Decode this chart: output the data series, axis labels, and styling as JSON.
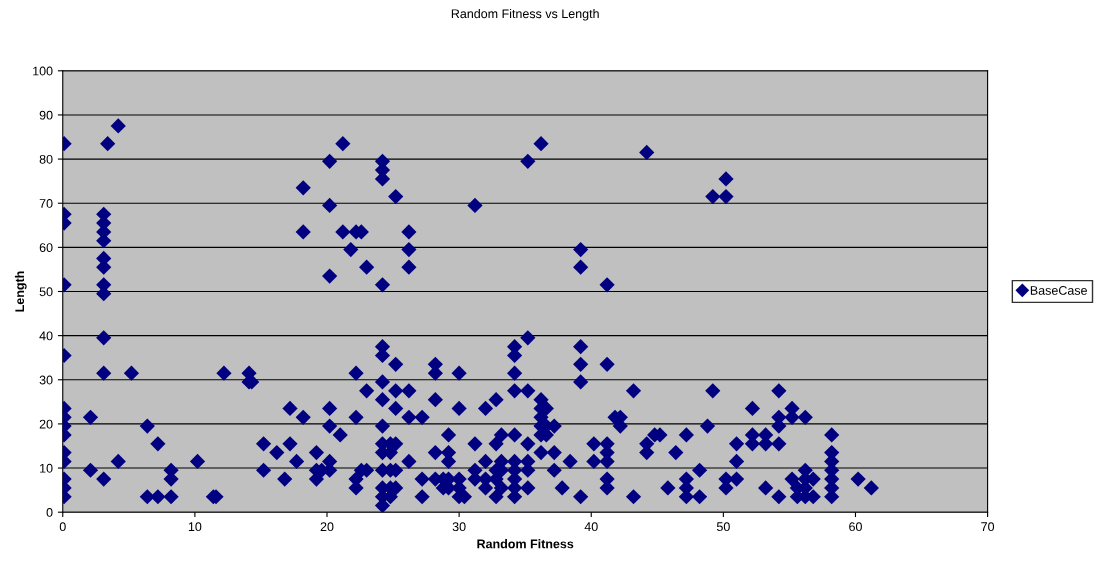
{
  "chart_data": {
    "type": "scatter",
    "title": "Random Fitness vs Length",
    "xlabel": "Random Fitness",
    "ylabel": "Length",
    "xlim": [
      0,
      70
    ],
    "xticks": [
      0,
      10,
      20,
      30,
      40,
      50,
      60,
      70
    ],
    "ylim": [
      0,
      100
    ],
    "yticks": [
      0,
      10,
      20,
      30,
      40,
      50,
      60,
      70,
      80,
      90,
      100
    ],
    "grid": "y",
    "legend": "right",
    "marker": "diamond",
    "series": [
      {
        "name": "BaseCase",
        "color": "#000080",
        "x": [
          0.1,
          0.1,
          0.1,
          0.1,
          0.1,
          0.1,
          0.1,
          0.1,
          0.1,
          0.1,
          0.1,
          0.1,
          0.1,
          0.1,
          2.1,
          2.1,
          3.1,
          3.1,
          3.1,
          3.1,
          3.1,
          3.1,
          3.1,
          3.1,
          3.1,
          3.1,
          3.1,
          3.4,
          4.2,
          4.2,
          5.2,
          6.4,
          6.4,
          7.2,
          7.2,
          8.2,
          8.2,
          8.2,
          10.2,
          11.4,
          11.6,
          12.2,
          14.1,
          14.1,
          14.3,
          15.2,
          15.2,
          16.2,
          16.8,
          17.2,
          17.2,
          17.7,
          18.2,
          18.2,
          18.2,
          19.2,
          19.2,
          19.2,
          19.6,
          20.2,
          20.2,
          20.2,
          20.2,
          20.2,
          20.2,
          20.2,
          21.0,
          21.2,
          21.2,
          21.8,
          22.2,
          22.2,
          22.2,
          22.2,
          22.2,
          22.6,
          22.6,
          23.0,
          23.0,
          23.0,
          24.2,
          24.2,
          24.2,
          24.2,
          24.2,
          24.2,
          24.2,
          24.2,
          24.2,
          24.2,
          24.2,
          24.2,
          24.2,
          24.2,
          24.2,
          24.8,
          24.8,
          24.8,
          24.8,
          24.8,
          25.2,
          25.2,
          25.2,
          25.2,
          25.2,
          25.2,
          25.2,
          26.2,
          26.2,
          26.2,
          26.2,
          26.2,
          26.2,
          27.2,
          27.2,
          27.2,
          28.2,
          28.2,
          28.2,
          28.2,
          28.2,
          28.8,
          28.8,
          29.2,
          29.2,
          29.2,
          29.2,
          29.2,
          30.0,
          30.0,
          30.0,
          30.0,
          30.0,
          30.4,
          31.2,
          31.2,
          31.2,
          31.2,
          32.0,
          32.0,
          32.0,
          32.0,
          32.8,
          32.8,
          32.8,
          32.8,
          32.8,
          33.2,
          33.2,
          33.2,
          33.2,
          34.2,
          34.2,
          34.2,
          34.2,
          34.2,
          34.2,
          34.2,
          34.2,
          34.2,
          34.2,
          35.2,
          35.2,
          35.2,
          35.2,
          35.2,
          35.2,
          35.2,
          36.2,
          36.2,
          36.2,
          36.2,
          36.2,
          36.2,
          36.2,
          36.6,
          36.6,
          36.6,
          37.2,
          37.2,
          37.2,
          37.8,
          38.4,
          39.2,
          39.2,
          39.2,
          39.2,
          39.2,
          39.2,
          40.2,
          40.2,
          41.2,
          41.2,
          41.2,
          41.2,
          41.2,
          41.2,
          41.2,
          41.8,
          42.2,
          42.2,
          43.2,
          43.2,
          44.2,
          44.2,
          44.2,
          44.8,
          45.2,
          45.8,
          46.4,
          47.2,
          47.2,
          47.2,
          47.2,
          48.2,
          48.2,
          48.8,
          49.2,
          49.2,
          50.2,
          50.2,
          50.2,
          50.2,
          51.0,
          51.0,
          51.0,
          52.2,
          52.2,
          52.2,
          53.2,
          53.2,
          53.2,
          54.2,
          54.2,
          54.2,
          54.2,
          54.2,
          55.2,
          55.2,
          55.2,
          55.6,
          55.6,
          56.2,
          56.2,
          56.2,
          56.2,
          56.2,
          56.8,
          56.8,
          58.2,
          58.2,
          58.2,
          58.2,
          58.2,
          58.2,
          58.2,
          60.2,
          61.2
        ],
        "values": [
          83.5,
          67.5,
          65.5,
          51.5,
          35.5,
          23.5,
          21.5,
          19.5,
          17.5,
          13.5,
          11.5,
          7.5,
          5.5,
          3.5,
          21.5,
          9.5,
          67.5,
          65.5,
          63.5,
          61.5,
          57.5,
          55.5,
          51.5,
          49.5,
          39.5,
          31.5,
          7.5,
          83.5,
          87.5,
          11.5,
          31.5,
          19.5,
          3.5,
          15.5,
          3.5,
          9.5,
          7.5,
          3.5,
          11.5,
          3.5,
          3.5,
          31.5,
          31.5,
          29.5,
          29.5,
          15.5,
          9.5,
          13.5,
          7.5,
          23.5,
          15.5,
          11.5,
          73.5,
          63.5,
          21.5,
          13.5,
          9.5,
          7.5,
          9.5,
          79.5,
          69.5,
          53.5,
          23.5,
          19.5,
          11.5,
          9.5,
          17.5,
          83.5,
          63.5,
          59.5,
          63.5,
          31.5,
          21.5,
          7.5,
          5.5,
          63.5,
          9.5,
          55.5,
          27.5,
          9.5,
          79.5,
          77.5,
          75.5,
          51.5,
          37.5,
          35.5,
          29.5,
          25.5,
          19.5,
          15.5,
          13.5,
          9.5,
          5.5,
          3.5,
          1.5,
          15.5,
          13.5,
          9.5,
          5.5,
          3.5,
          71.5,
          33.5,
          27.5,
          23.5,
          15.5,
          9.5,
          5.5,
          63.5,
          59.5,
          55.5,
          27.5,
          21.5,
          11.5,
          21.5,
          7.5,
          3.5,
          33.5,
          31.5,
          25.5,
          13.5,
          7.5,
          7.5,
          5.5,
          17.5,
          13.5,
          11.5,
          7.5,
          5.5,
          31.5,
          23.5,
          7.5,
          5.5,
          3.5,
          3.5,
          69.5,
          15.5,
          9.5,
          7.5,
          23.5,
          11.5,
          7.5,
          5.5,
          25.5,
          15.5,
          9.5,
          7.5,
          3.5,
          17.5,
          11.5,
          9.5,
          5.5,
          37.5,
          35.5,
          31.5,
          27.5,
          17.5,
          11.5,
          9.5,
          7.5,
          5.5,
          3.5,
          79.5,
          39.5,
          27.5,
          15.5,
          11.5,
          9.5,
          5.5,
          83.5,
          25.5,
          23.5,
          21.5,
          19.5,
          17.5,
          13.5,
          23.5,
          19.5,
          17.5,
          19.5,
          13.5,
          9.5,
          5.5,
          11.5,
          59.5,
          55.5,
          37.5,
          33.5,
          29.5,
          3.5,
          15.5,
          11.5,
          51.5,
          33.5,
          15.5,
          13.5,
          11.5,
          7.5,
          5.5,
          21.5,
          21.5,
          19.5,
          27.5,
          3.5,
          81.5,
          15.5,
          13.5,
          17.5,
          17.5,
          5.5,
          13.5,
          17.5,
          7.5,
          5.5,
          3.5,
          9.5,
          3.5,
          19.5,
          71.5,
          27.5,
          75.5,
          71.5,
          7.5,
          5.5,
          15.5,
          11.5,
          7.5,
          23.5,
          17.5,
          15.5,
          17.5,
          15.5,
          5.5,
          27.5,
          21.5,
          19.5,
          15.5,
          3.5,
          23.5,
          21.5,
          7.5,
          5.5,
          3.5,
          21.5,
          9.5,
          7.5,
          5.5,
          3.5,
          3.5,
          7.5,
          17.5,
          13.5,
          11.5,
          9.5,
          7.5,
          5.5,
          3.5,
          7.5,
          5.5
        ]
      }
    ]
  }
}
